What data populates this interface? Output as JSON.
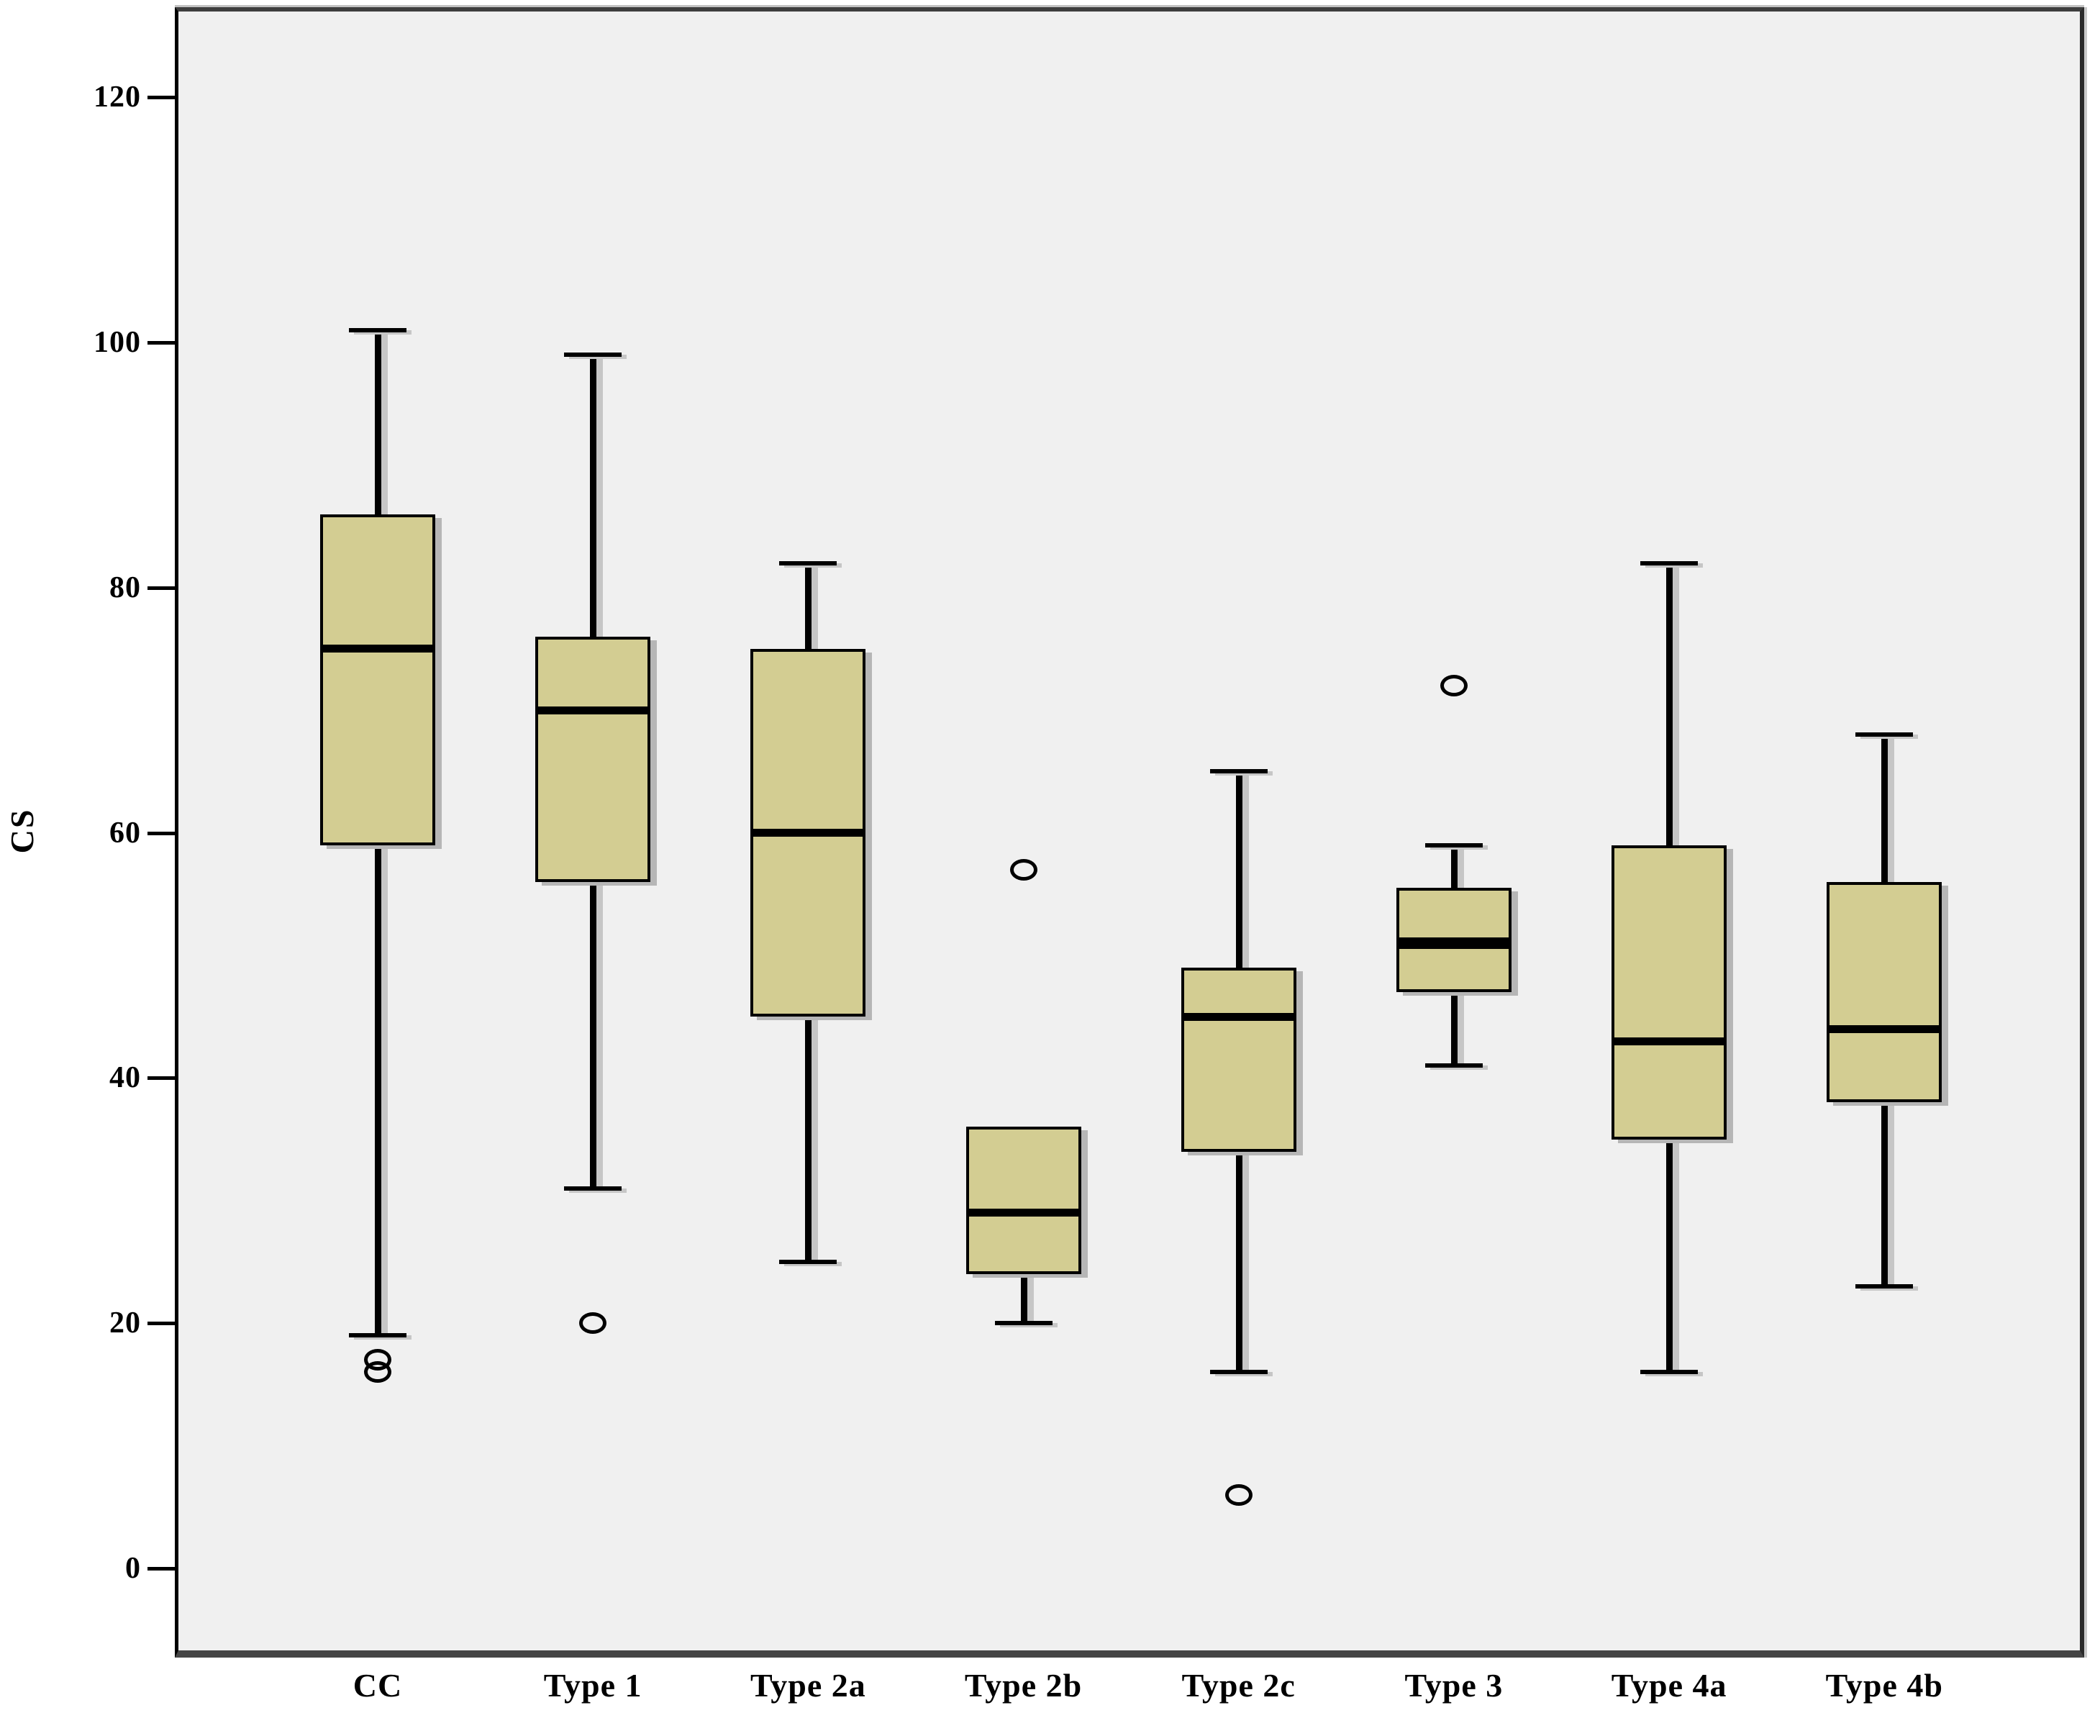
{
  "figure": {
    "y_axis_title": "CS"
  },
  "chart_data": {
    "type": "boxplot",
    "title": "",
    "xlabel": "",
    "ylabel": "CS",
    "ylim": [
      -6.7,
      127
    ],
    "y_ticks": [
      0,
      20,
      40,
      60,
      80,
      100,
      120
    ],
    "grid": false,
    "legend": "none",
    "plot_background": "#f0f0f0",
    "categories": [
      "CC",
      "Type 1",
      "Type 2a",
      "Type 2b",
      "Type 2c",
      "Type 3",
      "Type 4a",
      "Type 4b"
    ],
    "boxes": [
      {
        "category": "CC",
        "whisker_low": 19,
        "q1": 59,
        "median": 75,
        "q3": 86,
        "whisker_high": 101,
        "outliers": [
          17,
          16
        ],
        "median_bold": false
      },
      {
        "category": "Type 1",
        "whisker_low": 31,
        "q1": 56,
        "median": 70,
        "q3": 76,
        "whisker_high": 99,
        "outliers": [
          20
        ],
        "median_bold": false
      },
      {
        "category": "Type 2a",
        "whisker_low": 25,
        "q1": 45,
        "median": 60,
        "q3": 75,
        "whisker_high": 82,
        "outliers": [],
        "median_bold": false
      },
      {
        "category": "Type 2b",
        "whisker_low": 20,
        "q1": 24,
        "median": 29,
        "q3": 36,
        "whisker_high": 36,
        "outliers": [
          57
        ],
        "median_bold": false
      },
      {
        "category": "Type 2c",
        "whisker_low": 16,
        "q1": 34,
        "median": 45,
        "q3": 49,
        "whisker_high": 65,
        "outliers": [
          6
        ],
        "median_bold": false
      },
      {
        "category": "Type 3",
        "whisker_low": 41,
        "q1": 47,
        "median": 51,
        "q3": 55.5,
        "whisker_high": 59,
        "outliers": [
          72
        ],
        "median_bold": true
      },
      {
        "category": "Type 4a",
        "whisker_low": 16,
        "q1": 35,
        "median": 43,
        "q3": 59,
        "whisker_high": 82,
        "outliers": [],
        "median_bold": false
      },
      {
        "category": "Type 4b",
        "whisker_low": 23,
        "q1": 38,
        "median": 44,
        "q3": 56,
        "whisker_high": 68,
        "outliers": [],
        "median_bold": false
      }
    ],
    "colors": {
      "box_fill": "#d3cd92",
      "line": "#000000",
      "plot_bg": "#f0f0f0",
      "shadow": "#b6b6b6",
      "canvas_bg": "#ffffff"
    }
  }
}
